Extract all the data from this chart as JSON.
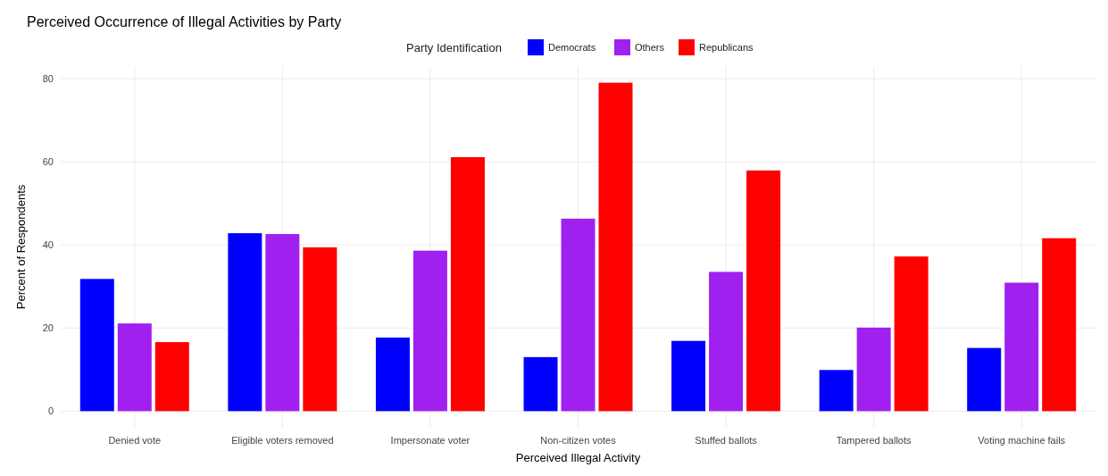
{
  "chart_data": {
    "type": "bar",
    "title": "Perceived Occurrence of Illegal Activities by Party",
    "xlabel": "Perceived Illegal Activity",
    "ylabel": "Percent of Respondents",
    "legend_title": "Party Identification",
    "legend": "top",
    "grid": true,
    "categories": [
      "Denied vote",
      "Eligible voters removed",
      "Impersonate voter",
      "Non-citizen votes",
      "Stuffed ballots",
      "Tampered ballots",
      "Voting machine fails"
    ],
    "series": [
      {
        "name": "Democrats",
        "color": "#0000ff",
        "values": [
          31.8,
          42.8,
          17.7,
          13.0,
          16.9,
          9.9,
          15.2
        ]
      },
      {
        "name": "Others",
        "color": "#a020f0",
        "values": [
          21.1,
          42.6,
          38.6,
          46.3,
          33.5,
          20.1,
          30.9
        ]
      },
      {
        "name": "Republicans",
        "color": "#ff0000",
        "values": [
          16.6,
          39.4,
          61.1,
          79.0,
          57.9,
          37.2,
          41.6
        ]
      }
    ],
    "ylim": [
      -4,
      83
    ],
    "yticks": [
      0,
      20,
      40,
      60,
      80
    ]
  }
}
